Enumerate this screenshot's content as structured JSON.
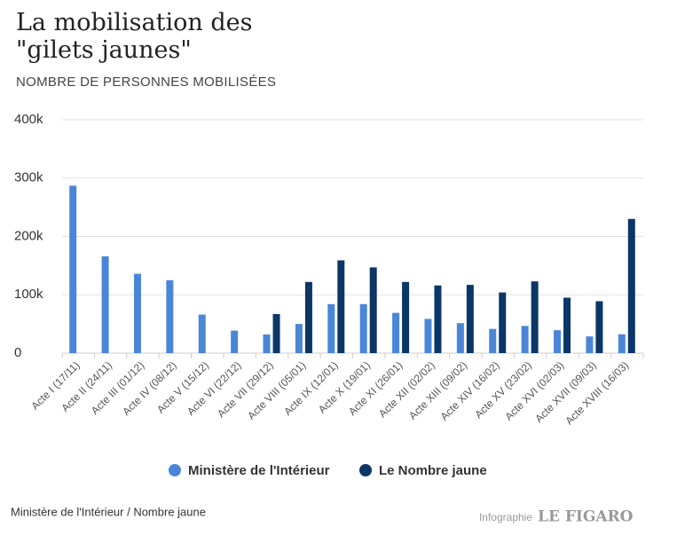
{
  "chart_data": {
    "type": "bar",
    "title": "La mobilisation des \"gilets jaunes\"",
    "subtitle": "NOMBRE DE PERSONNES MOBILISÉES",
    "categories": [
      "Acte I (17/11)",
      "Acte II (24/11)",
      "Acte III (01/12)",
      "Acte IV (08/12)",
      "Acte V (15/12)",
      "Acte VI (22/12)",
      "Acte VII (29/12)",
      "Acte VIII (05/01)",
      "Acte IX (12/01)",
      "Acte X (19/01)",
      "Acte XI (26/01)",
      "Acte XII (02/02)",
      "Acte XIII (09/02)",
      "Acte XIV (16/02)",
      "Acte XV (23/02)",
      "Acte XVI (02/03)",
      "Acte XVII (09/03)",
      "Acte XVIII (16/03)"
    ],
    "series": [
      {
        "name": "Ministère de l'Intérieur",
        "color": "#4a86d8",
        "values": [
          287000,
          166000,
          136000,
          125000,
          66000,
          38600,
          32000,
          50000,
          84000,
          84000,
          69000,
          58600,
          51400,
          41500,
          46600,
          39300,
          28600,
          32300
        ]
      },
      {
        "name": "Le Nombre jaune",
        "color": "#0b3667",
        "values": [
          null,
          null,
          null,
          null,
          null,
          null,
          67000,
          122000,
          159000,
          147000,
          122000,
          116000,
          117000,
          104000,
          123000,
          95000,
          89000,
          230000
        ]
      }
    ],
    "ylim": [
      0,
      400000
    ],
    "yticks": [
      0,
      {
        "value": 100000,
        "label": "100k"
      },
      {
        "value": 200000,
        "label": "200k"
      },
      {
        "value": 300000,
        "label": "300k"
      },
      {
        "value": 400000,
        "label": "400k"
      }
    ],
    "grid": true,
    "legend": "bottom",
    "source": "Ministère de l'Intérieur / Nombre jaune",
    "credit": "Infographie",
    "brand": "LE FIGARO"
  }
}
